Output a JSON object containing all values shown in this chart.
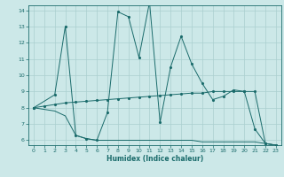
{
  "xlabel": "Humidex (Indice chaleur)",
  "bg_color": "#cce8e8",
  "grid_color": "#aacfcf",
  "line_color": "#1a6b6b",
  "xlim": [
    -0.5,
    23.5
  ],
  "ylim": [
    5.7,
    14.3
  ],
  "yticks": [
    6,
    7,
    8,
    9,
    10,
    11,
    12,
    13,
    14
  ],
  "xticks": [
    0,
    1,
    2,
    3,
    4,
    5,
    6,
    7,
    8,
    9,
    10,
    11,
    12,
    13,
    14,
    15,
    16,
    17,
    18,
    19,
    20,
    21,
    22,
    23
  ],
  "series1_x": [
    0,
    1,
    2,
    3,
    4,
    5,
    6,
    7,
    8,
    9,
    10,
    11,
    12,
    13,
    14,
    15,
    16,
    17,
    18,
    19,
    20,
    21,
    22,
    23
  ],
  "series1_y": [
    8.0,
    8.1,
    8.2,
    8.3,
    8.35,
    8.4,
    8.45,
    8.5,
    8.55,
    8.6,
    8.65,
    8.7,
    8.75,
    8.8,
    8.85,
    8.9,
    8.9,
    9.0,
    9.0,
    9.0,
    9.0,
    9.0,
    5.8,
    5.7
  ],
  "series2_x": [
    0,
    2,
    3,
    4,
    5,
    6,
    7,
    8,
    9,
    10,
    11,
    12,
    13,
    14,
    15,
    16,
    17,
    18,
    19,
    20,
    21,
    22,
    23
  ],
  "series2_y": [
    8.0,
    8.8,
    13.0,
    6.3,
    6.1,
    6.0,
    7.7,
    13.9,
    13.6,
    11.1,
    14.5,
    7.1,
    10.5,
    12.4,
    10.7,
    9.5,
    8.5,
    8.7,
    9.1,
    9.0,
    6.7,
    5.8,
    5.7
  ],
  "series3_x": [
    0,
    1,
    2,
    3,
    4,
    5,
    6,
    7,
    8,
    9,
    10,
    11,
    12,
    13,
    14,
    15,
    16,
    17,
    18,
    19,
    20,
    21,
    22,
    23
  ],
  "series3_y": [
    8.0,
    7.9,
    7.8,
    7.5,
    6.3,
    6.1,
    6.0,
    6.0,
    6.0,
    6.0,
    6.0,
    6.0,
    6.0,
    6.0,
    6.0,
    6.0,
    5.9,
    5.9,
    5.9,
    5.9,
    5.9,
    5.9,
    5.8,
    5.7
  ]
}
